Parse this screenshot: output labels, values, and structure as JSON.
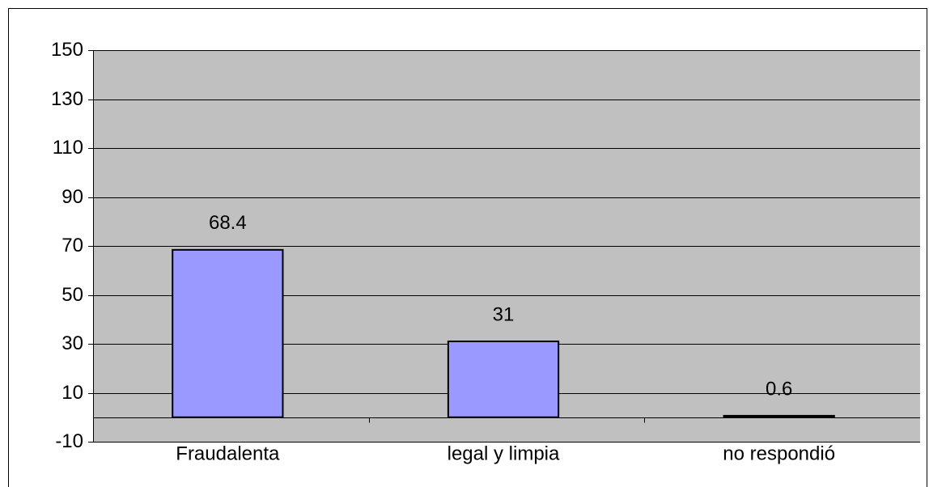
{
  "chart_data": {
    "type": "bar",
    "categories": [
      "Fraudalenta",
      "legal y limpia",
      "no respondió"
    ],
    "values": [
      68.4,
      31,
      0.6
    ],
    "color": "#9999ff",
    "ylim": [
      -10,
      150
    ],
    "yticks": [
      -10,
      10,
      30,
      50,
      70,
      90,
      110,
      130,
      150
    ],
    "grid": true
  }
}
